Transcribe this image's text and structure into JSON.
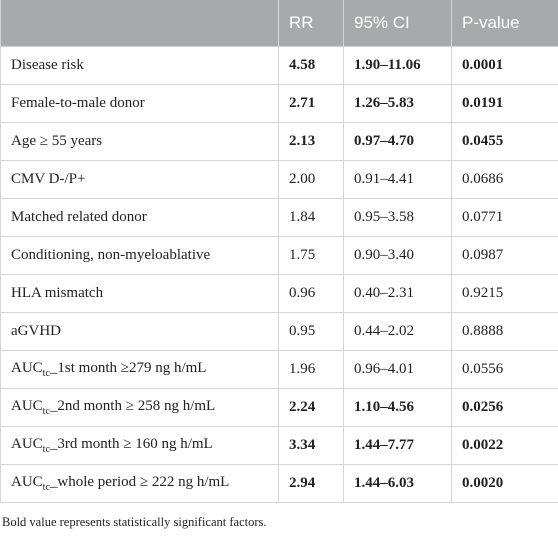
{
  "table": {
    "header": [
      "",
      "RR",
      "95% CI",
      "P-value"
    ],
    "rows": [
      {
        "label": "Disease risk",
        "rr": "4.58",
        "ci": "1.90–11.06",
        "p": "0.0001",
        "bold": true
      },
      {
        "label": "Female-to-male donor",
        "rr": "2.71",
        "ci": "1.26–5.83",
        "p": "0.0191",
        "bold": true
      },
      {
        "label": "Age ≥ 55 years",
        "rr": "2.13",
        "ci": "0.97–4.70",
        "p": "0.0455",
        "bold": true
      },
      {
        "label": "CMV D-/P+",
        "rr": "2.00",
        "ci": "0.91–4.41",
        "p": "0.0686",
        "bold": false
      },
      {
        "label": "Matched related donor",
        "rr": "1.84",
        "ci": "0.95–3.58",
        "p": "0.0771",
        "bold": false
      },
      {
        "label": "Conditioning, non-myeloablative",
        "rr": "1.75",
        "ci": "0.90–3.40",
        "p": "0.0987",
        "bold": false
      },
      {
        "label": "HLA mismatch",
        "rr": "0.96",
        "ci": "0.40–2.31",
        "p": "0.9215",
        "bold": false
      },
      {
        "label": "aGVHD",
        "rr": "0.95",
        "ci": "0.44–2.02",
        "p": "0.8888",
        "bold": false
      },
      {
        "label": "AUC",
        "label_sub": "tc",
        "label_rest": "_1st month ≥279 ng h/mL",
        "rr": "1.96",
        "ci": "0.96–4.01",
        "p": "0.0556",
        "bold": false
      },
      {
        "label": "AUC",
        "label_sub": "tc",
        "label_rest": "_2nd month ≥ 258 ng h/mL",
        "rr": "2.24",
        "ci": "1.10–4.56",
        "p": "0.0256",
        "bold": true
      },
      {
        "label": "AUC",
        "label_sub": "tc",
        "label_rest": "_3rd month ≥ 160 ng h/mL",
        "rr": "3.34",
        "ci": "1.44–7.77",
        "p": "0.0022",
        "bold": true
      },
      {
        "label": "AUC",
        "label_sub": "tc",
        "label_rest": "_whole period ≥ 222 ng h/mL",
        "rr": "2.94",
        "ci": "1.44–6.03",
        "p": "0.0020",
        "bold": true
      }
    ],
    "footnote": "Bold value represents statistically significant factors."
  }
}
